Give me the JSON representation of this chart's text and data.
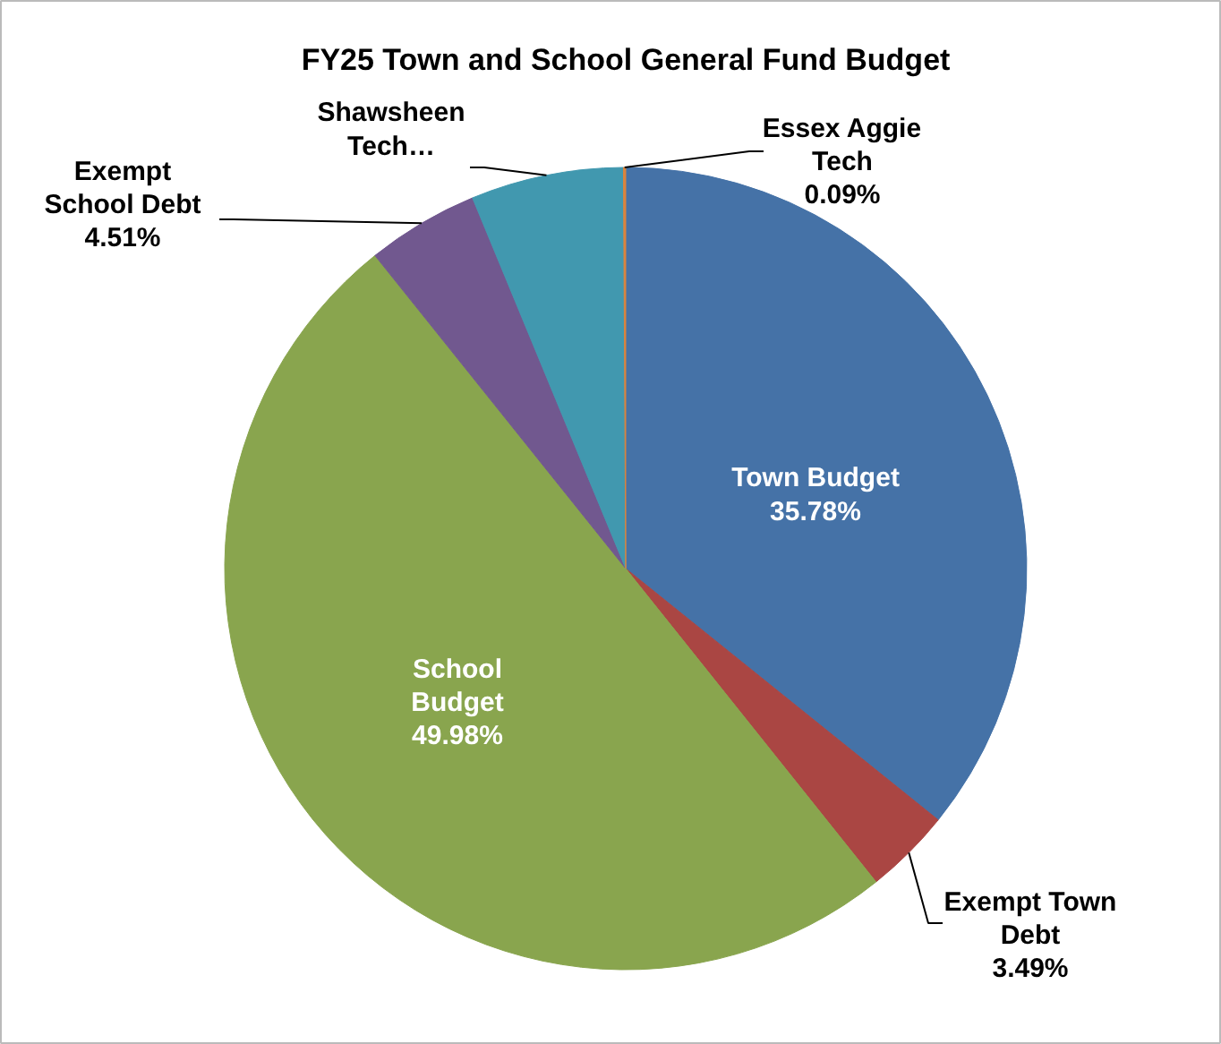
{
  "chart_data": {
    "type": "pie",
    "title": "FY25 Town and School General Fund Budget",
    "categories": [
      "Town Budget",
      "Exempt Town\nDebt",
      "School\nBudget",
      "Exempt\nSchool Debt",
      "Shawsheen\nTech…",
      "Essex Aggie\nTech"
    ],
    "values": [
      35.78,
      3.49,
      49.98,
      4.51,
      6.15,
      0.09
    ],
    "value_labels": [
      "35.78%",
      "3.49%",
      "49.98%",
      "4.51%",
      null,
      "0.09%"
    ],
    "colors": [
      "#4572a7",
      "#aa4643",
      "#89a54e",
      "#71588f",
      "#4198af",
      "#db843d"
    ]
  }
}
